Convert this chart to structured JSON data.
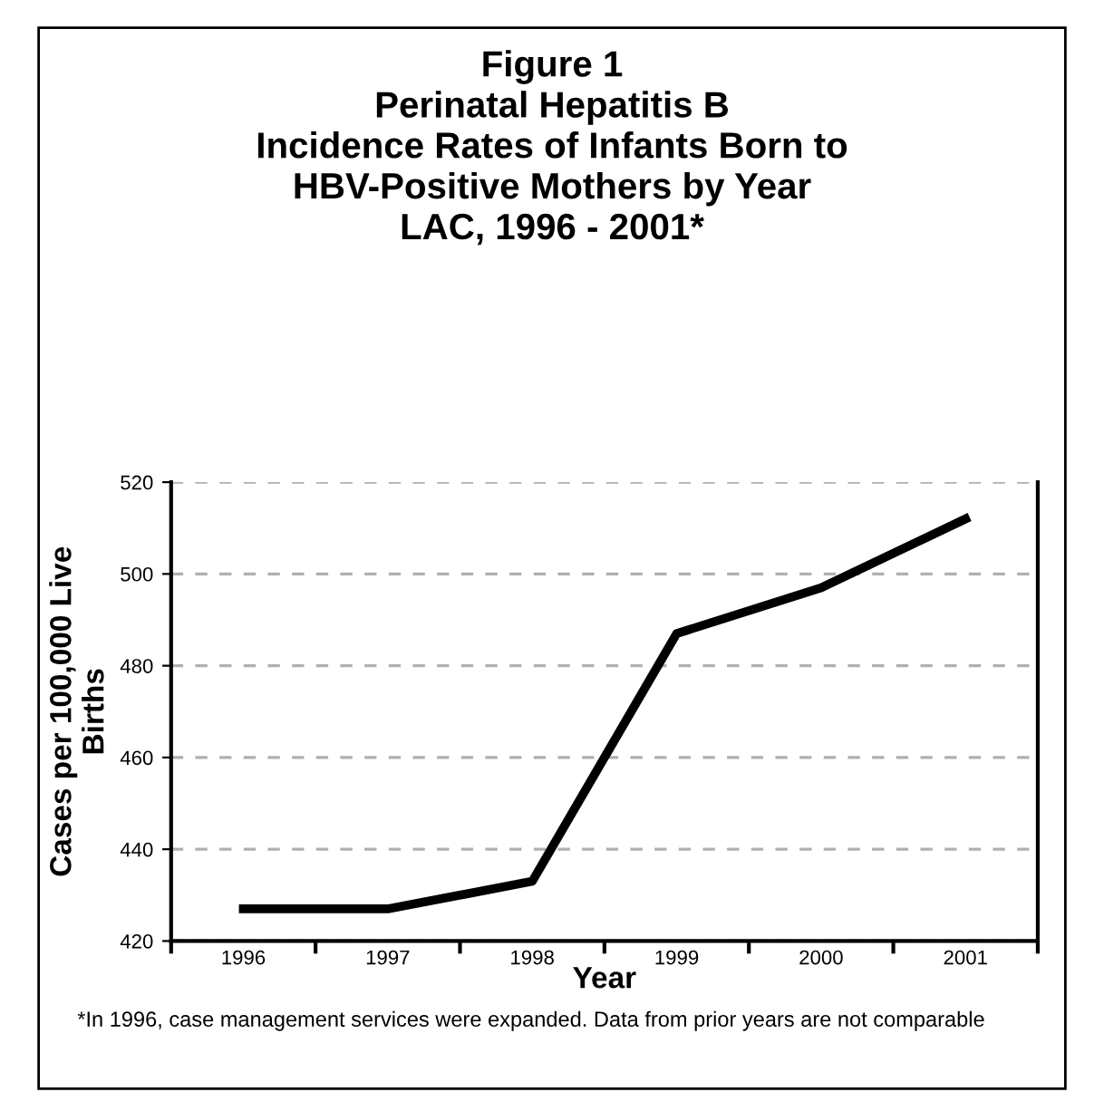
{
  "chart_data": {
    "type": "line",
    "title": "Figure 1\nPerinatal Hepatitis B\nIncidence Rates of Infants Born to\nHBV-Positive Mothers by Year\nLAC, 1996 - 2001*",
    "xlabel": "Year",
    "ylabel": "Cases per 100,000 Live\nBirths",
    "categories": [
      "1996",
      "1997",
      "1998",
      "1999",
      "2000",
      "2001"
    ],
    "series": [
      {
        "color": "#000000",
        "values": [
          427,
          427,
          433,
          487,
          497,
          512
        ]
      }
    ],
    "ylim": [
      420,
      520
    ],
    "yticks": [
      420,
      440,
      460,
      480,
      500,
      520
    ],
    "grid": "y",
    "marker": "none",
    "line_style": "solid",
    "legend": false,
    "annotations": [
      "*In 1996, case management services were expanded. Data from prior years are not comparable"
    ]
  }
}
